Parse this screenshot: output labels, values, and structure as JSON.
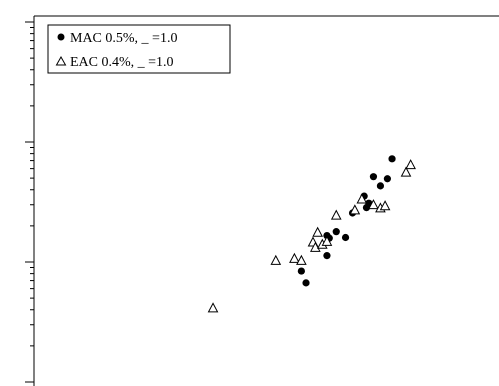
{
  "chart_data": {
    "type": "scatter",
    "ylog": true,
    "grid": false,
    "legend_position": "top-left",
    "series": [
      {
        "name": "MAC 0.5%, _ =1.0",
        "marker": "filled-circle",
        "color": "#000000",
        "points": [
          [
            0.115,
            0.0084
          ],
          [
            0.117,
            0.0067
          ],
          [
            0.126,
            0.0113
          ],
          [
            0.127,
            0.0158
          ],
          [
            0.126,
            0.0166
          ],
          [
            0.13,
            0.0179
          ],
          [
            0.134,
            0.016
          ],
          [
            0.137,
            0.0256
          ],
          [
            0.142,
            0.0354
          ],
          [
            0.143,
            0.0284
          ],
          [
            0.144,
            0.0309
          ],
          [
            0.146,
            0.0514
          ],
          [
            0.149,
            0.0431
          ],
          [
            0.152,
            0.0494
          ],
          [
            0.154,
            0.0724
          ]
        ]
      },
      {
        "name": "EAC 0.4%, _ =1.0",
        "marker": "open-triangle",
        "color": "#000000",
        "points": [
          [
            0.077,
            0.0041
          ],
          [
            0.104,
            0.0102
          ],
          [
            0.112,
            0.0106
          ],
          [
            0.115,
            0.0102
          ],
          [
            0.12,
            0.0145
          ],
          [
            0.121,
            0.0131
          ],
          [
            0.122,
            0.0175
          ],
          [
            0.124,
            0.0139
          ],
          [
            0.126,
            0.0147
          ],
          [
            0.13,
            0.0243
          ],
          [
            0.138,
            0.0269
          ],
          [
            0.141,
            0.0331
          ],
          [
            0.146,
            0.0297
          ],
          [
            0.149,
            0.0279
          ],
          [
            0.151,
            0.0291
          ],
          [
            0.16,
            0.0555
          ],
          [
            0.162,
            0.064
          ]
        ]
      }
    ],
    "xlim": [
      0.0,
      0.2
    ],
    "ylim": [
      0.001,
      0.1
    ]
  }
}
